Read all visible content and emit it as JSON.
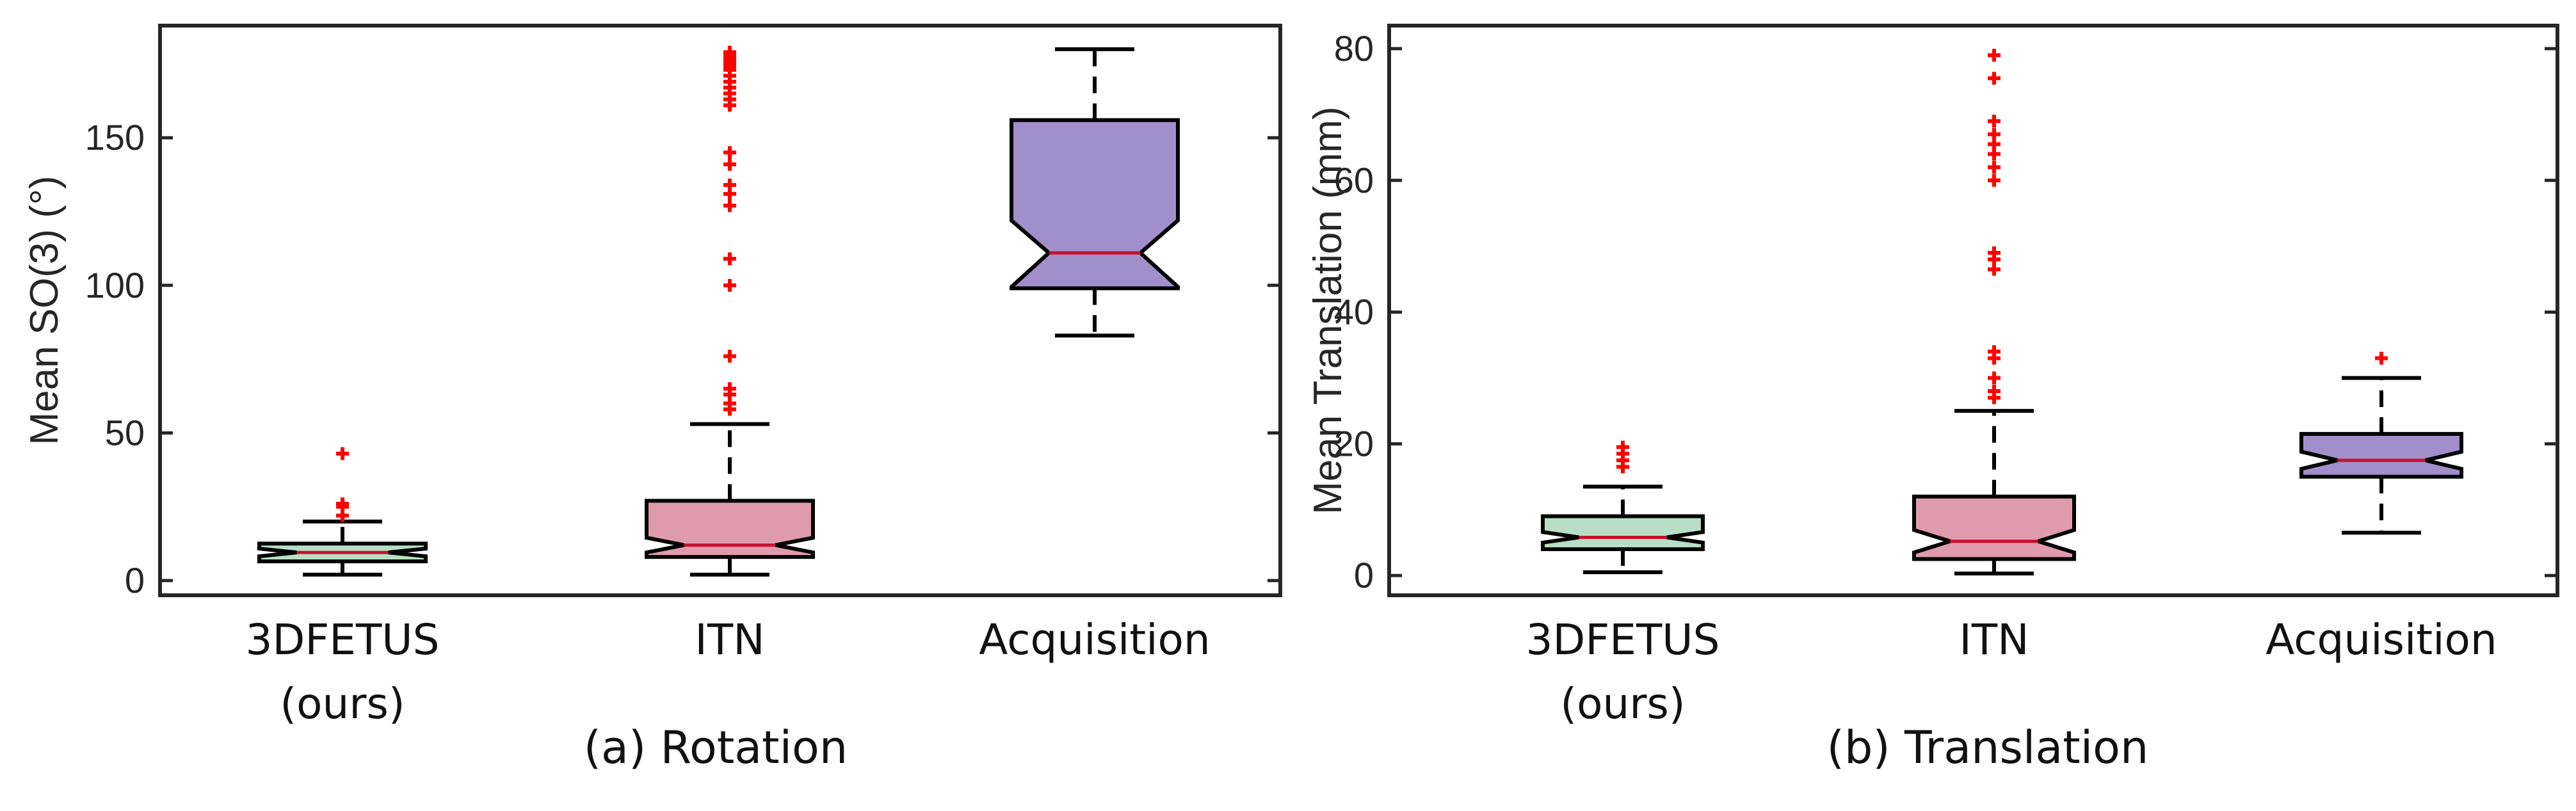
{
  "chart_data": [
    {
      "type": "boxplot",
      "notched": true,
      "caption": "(a) Rotation",
      "ylabel": "Mean SO(3) (°)",
      "ylim": [
        -5,
        188
      ],
      "yticks": [
        0,
        50,
        100,
        150
      ],
      "categories": [
        {
          "label_lines": [
            "3DFETUS",
            "(ours)"
          ],
          "min": 2,
          "q1": 6.5,
          "median": 9.5,
          "q3": 12.5,
          "max": 20,
          "notch_lo": 8.2,
          "notch_hi": 10.8,
          "outliers": [
            43,
            26,
            25,
            22
          ],
          "fill": "#b8dfc5"
        },
        {
          "label_lines": [
            "ITN"
          ],
          "min": 2,
          "q1": 8,
          "median": 12,
          "q3": 27,
          "max": 53,
          "notch_lo": 9.5,
          "notch_hi": 14.5,
          "outliers": [
            58,
            60,
            63,
            65,
            76,
            100,
            109,
            127,
            131,
            134,
            141,
            145,
            161,
            163,
            165,
            167,
            169,
            171,
            173,
            174,
            175,
            176,
            177,
            178,
            179
          ],
          "fill": "#e09aae"
        },
        {
          "label_lines": [
            "Acquisition"
          ],
          "min": 83,
          "q1": 99,
          "median": 111,
          "q3": 156,
          "max": 180,
          "notch_lo": 99.5,
          "notch_hi": 122,
          "outliers": [],
          "fill": "#a08fcb"
        }
      ]
    },
    {
      "type": "boxplot",
      "notched": true,
      "caption": "(b) Translation",
      "ylabel": "Mean Translation (mm)",
      "ylim": [
        -3,
        83.5
      ],
      "yticks": [
        0,
        20,
        40,
        60,
        80
      ],
      "categories": [
        {
          "label_lines": [
            "3DFETUS",
            "(ours)"
          ],
          "min": 0.5,
          "q1": 4,
          "median": 5.8,
          "q3": 9,
          "max": 13.5,
          "notch_lo": 5.0,
          "notch_hi": 6.6,
          "outliers": [
            16.5,
            17.5,
            18.5,
            19.5
          ],
          "fill": "#b8dfc5"
        },
        {
          "label_lines": [
            "ITN"
          ],
          "min": 0.3,
          "q1": 2.5,
          "median": 5.2,
          "q3": 12,
          "max": 25,
          "notch_lo": 3.5,
          "notch_hi": 6.9,
          "outliers": [
            27,
            28,
            30,
            33,
            34,
            46.5,
            48,
            49,
            60,
            62,
            64,
            65.5,
            67,
            69,
            75.5,
            79
          ],
          "fill": "#e09aae"
        },
        {
          "label_lines": [
            "Acquisition"
          ],
          "min": 6.5,
          "q1": 15,
          "median": 17.5,
          "q3": 21.5,
          "max": 30,
          "notch_lo": 16.2,
          "notch_hi": 18.8,
          "outliers": [
            33
          ],
          "fill": "#a08fcb"
        }
      ]
    }
  ]
}
